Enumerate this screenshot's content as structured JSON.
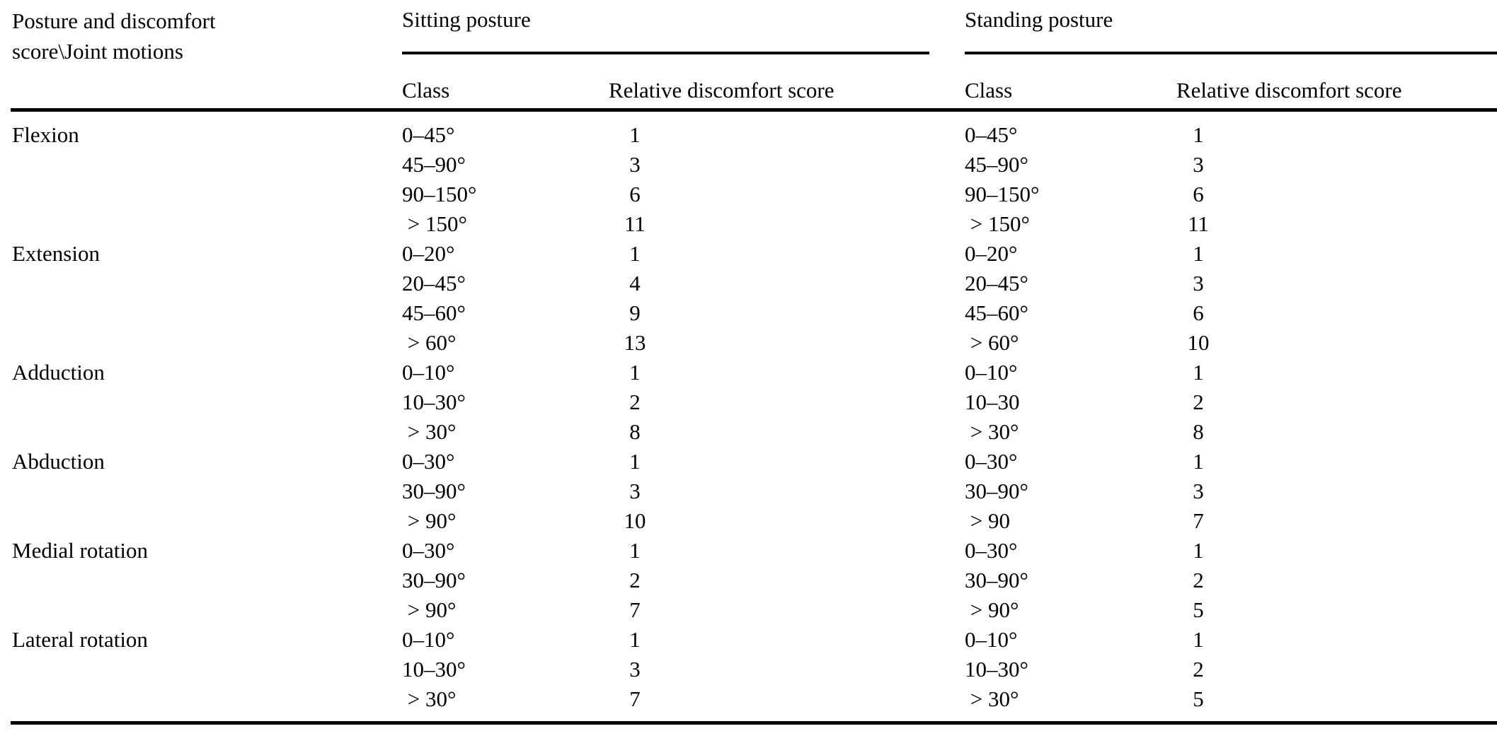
{
  "table": {
    "corner_header_line1": "Posture and discomfort",
    "corner_header_line2": "score\\Joint motions",
    "sitting_title": "Sitting posture",
    "standing_title": "Standing posture",
    "sitting_class_header": "Class",
    "sitting_score_header": "Relative discomfort score",
    "standing_class_header": "Class",
    "standing_score_header": "Relative discomfort score",
    "text_color": "#000000",
    "background_color": "#ffffff",
    "rows": [
      {
        "motion": "Flexion",
        "sit_class": "0–45°",
        "sit_score": "1",
        "stand_class": "0–45°",
        "stand_score": "1"
      },
      {
        "motion": "",
        "sit_class": "45–90°",
        "sit_score": "3",
        "stand_class": "45–90°",
        "stand_score": "3"
      },
      {
        "motion": "",
        "sit_class": "90–150°",
        "sit_score": "6",
        "stand_class": "90–150°",
        "stand_score": "6"
      },
      {
        "motion": "",
        "sit_class": " > 150°",
        "sit_score": "11",
        "stand_class": " > 150°",
        "stand_score": "11"
      },
      {
        "motion": "Extension",
        "sit_class": "0–20°",
        "sit_score": "1",
        "stand_class": "0–20°",
        "stand_score": "1"
      },
      {
        "motion": "",
        "sit_class": "20–45°",
        "sit_score": "4",
        "stand_class": "20–45°",
        "stand_score": "3"
      },
      {
        "motion": "",
        "sit_class": "45–60°",
        "sit_score": "9",
        "stand_class": "45–60°",
        "stand_score": "6"
      },
      {
        "motion": "",
        "sit_class": " > 60°",
        "sit_score": "13",
        "stand_class": " > 60°",
        "stand_score": "10"
      },
      {
        "motion": "Adduction",
        "sit_class": "0–10°",
        "sit_score": "1",
        "stand_class": "0–10°",
        "stand_score": "1"
      },
      {
        "motion": "",
        "sit_class": "10–30°",
        "sit_score": "2",
        "stand_class": "10–30",
        "stand_score": "2"
      },
      {
        "motion": "",
        "sit_class": " > 30°",
        "sit_score": "8",
        "stand_class": " > 30°",
        "stand_score": "8"
      },
      {
        "motion": "Abduction",
        "sit_class": "0–30°",
        "sit_score": "1",
        "stand_class": "0–30°",
        "stand_score": "1"
      },
      {
        "motion": "",
        "sit_class": "30–90°",
        "sit_score": "3",
        "stand_class": "30–90°",
        "stand_score": "3"
      },
      {
        "motion": "",
        "sit_class": " > 90°",
        "sit_score": "10",
        "stand_class": " > 90",
        "stand_score": "7"
      },
      {
        "motion": "Medial rotation",
        "sit_class": "0–30°",
        "sit_score": "1",
        "stand_class": "0–30°",
        "stand_score": "1"
      },
      {
        "motion": "",
        "sit_class": "30–90°",
        "sit_score": "2",
        "stand_class": "30–90°",
        "stand_score": "2"
      },
      {
        "motion": "",
        "sit_class": " > 90°",
        "sit_score": "7",
        "stand_class": " > 90°",
        "stand_score": "5"
      },
      {
        "motion": "Lateral rotation",
        "sit_class": "0–10°",
        "sit_score": "1",
        "stand_class": "0–10°",
        "stand_score": "1"
      },
      {
        "motion": "",
        "sit_class": "10–30°",
        "sit_score": "3",
        "stand_class": "10–30°",
        "stand_score": "2"
      },
      {
        "motion": "",
        "sit_class": " > 30°",
        "sit_score": "7",
        "stand_class": " > 30°",
        "stand_score": "5"
      }
    ]
  }
}
